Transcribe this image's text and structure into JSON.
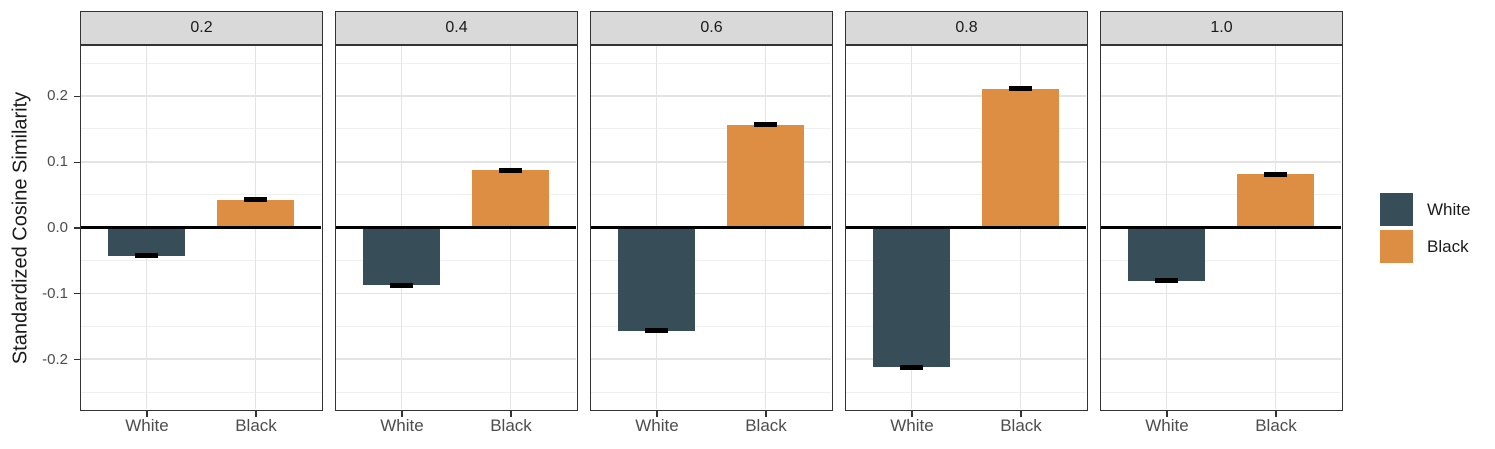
{
  "chart_data": {
    "type": "bar",
    "title": "",
    "xlabel": "",
    "ylabel": "Standardized Cosine Similarity",
    "faceted": true,
    "facet_labels": [
      "0.2",
      "0.4",
      "0.6",
      "0.8",
      "1.0"
    ],
    "categories": [
      "White",
      "Black"
    ],
    "series": [
      {
        "name": "White",
        "color": "#374D57",
        "values_by_facet": [
          -0.043,
          -0.088,
          -0.157,
          -0.212,
          -0.081
        ],
        "errors_by_facet": [
          0.004,
          0.004,
          0.004,
          0.004,
          0.004
        ]
      },
      {
        "name": "Black",
        "color": "#DE8E43",
        "values_by_facet": [
          0.042,
          0.087,
          0.156,
          0.211,
          0.081
        ],
        "errors_by_facet": [
          0.004,
          0.004,
          0.004,
          0.004,
          0.004
        ]
      }
    ],
    "y_axis": {
      "tick_labels": [
        "0.2",
        "0.1",
        "0.0",
        "-0.1",
        "-0.2"
      ],
      "tick_values": [
        0.2,
        0.1,
        0.0,
        -0.1,
        -0.2
      ],
      "minor_tick_values": [
        0.25,
        0.15,
        0.05,
        -0.05,
        -0.15,
        -0.25
      ],
      "range": [
        -0.278,
        0.278
      ]
    },
    "zero_line": true,
    "grid": true,
    "legend_position": "right",
    "legend": {
      "items": [
        {
          "label": "White",
          "color": "#374D57"
        },
        {
          "label": "Black",
          "color": "#DE8E43"
        }
      ]
    }
  },
  "theme": {
    "background": "#FFFFFF",
    "strip_fill": "#D9D9D9",
    "strip_text": "#1A1A1A",
    "panel_border": "#333333",
    "grid_major": "#E4E4E4",
    "grid_minor": "#F0F0F0",
    "axis_text": "#4D4D4D",
    "axis_title": "#1A1A1A",
    "zero_line_color": "#000000",
    "error_bar_color": "#000000"
  }
}
